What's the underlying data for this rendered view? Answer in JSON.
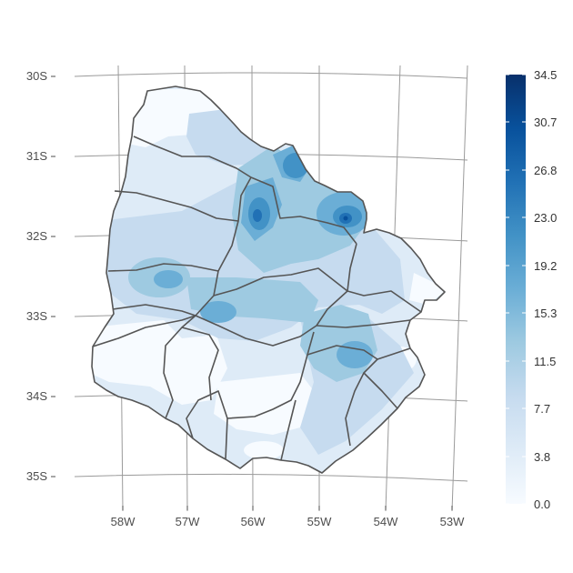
{
  "map": {
    "lat_labels": [
      "30S",
      "31S",
      "32S",
      "33S",
      "34S",
      "35S"
    ],
    "lon_labels": [
      "58W",
      "57W",
      "56W",
      "55W",
      "54W",
      "53W"
    ],
    "legend_labels": [
      "34.5",
      "30.7",
      "26.8",
      "23.0",
      "19.2",
      "15.3",
      "11.5",
      "7.7",
      "3.8",
      "0.0"
    ]
  },
  "colors": {
    "scale": [
      "#f7fbff",
      "#deebf7",
      "#c6dbef",
      "#9ecae1",
      "#6baed6",
      "#4292c6",
      "#2171b5",
      "#08519c",
      "#08306b"
    ],
    "grid": "#9a9a9a",
    "border": "#555555",
    "text": "#4d4d4d"
  },
  "chart_data": {
    "type": "heatmap",
    "subject": "gridded values over Uruguay with department borders",
    "legend_breaks": [
      0.0,
      3.8,
      7.7,
      11.5,
      15.3,
      19.2,
      23.0,
      26.8,
      30.7,
      34.5
    ],
    "lat_ticks": [
      "30S",
      "31S",
      "32S",
      "33S",
      "34S",
      "35S"
    ],
    "lon_ticks": [
      "58W",
      "57W",
      "56W",
      "55W",
      "54W",
      "53W"
    ]
  }
}
